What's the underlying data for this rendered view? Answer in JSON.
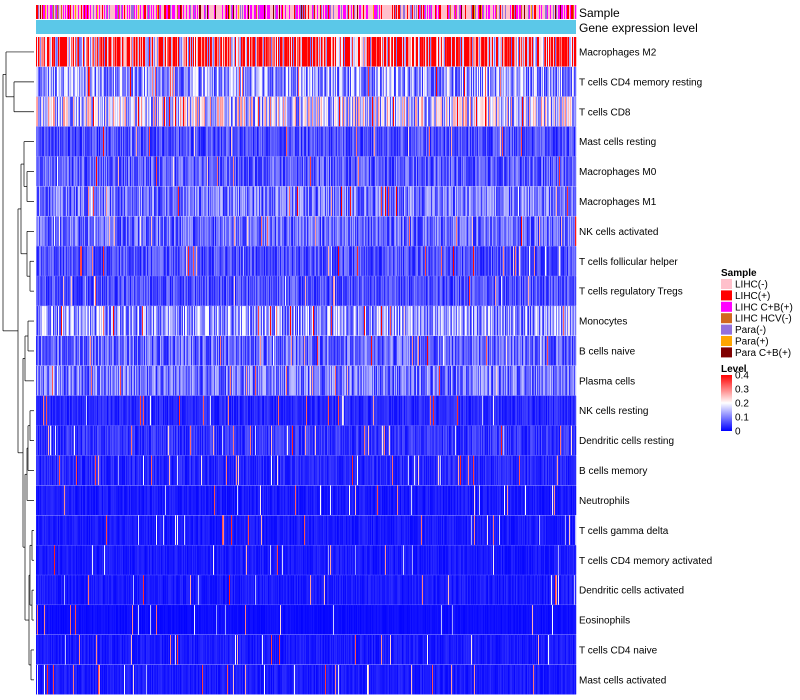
{
  "chart_data": {
    "type": "heatmap",
    "annotations": {
      "sample_label": "Sample",
      "expression_label": "Gene expression level",
      "expression_color": "#5bc8e8"
    },
    "rows": [
      "Macrophages M2",
      "T cells CD4 memory resting",
      "T cells CD8",
      "Mast cells resting",
      "Macrophages M0",
      "Macrophages M1",
      "NK cells activated",
      "T cells follicular helper",
      "T cells regulatory  Tregs",
      "Monocytes",
      "B cells naive",
      "Plasma cells",
      "NK cells resting",
      "Dendritic cells resting",
      "B cells memory",
      "Neutrophils",
      "T cells gamma delta",
      "T cells CD4 memory activated",
      "Dendritic cells activated",
      "Eosinophils",
      "T cells CD4 naive",
      "Mast cells activated"
    ],
    "row_mean_levels": [
      0.32,
      0.12,
      0.17,
      0.06,
      0.07,
      0.09,
      0.08,
      0.06,
      0.06,
      0.12,
      0.08,
      0.09,
      0.03,
      0.04,
      0.03,
      0.02,
      0.02,
      0.02,
      0.02,
      0.01,
      0.02,
      0.02
    ],
    "num_samples": 540,
    "sample_legend": {
      "title": "Sample",
      "items": [
        {
          "label": "LIHC(-)",
          "color": "#ffc0cb"
        },
        {
          "label": "LIHC(+)",
          "color": "#ff0000"
        },
        {
          "label": "LIHC C+B(+)",
          "color": "#ff00ff"
        },
        {
          "label": "LIHC HCV(-)",
          "color": "#d2691e"
        },
        {
          "label": "Para(-)",
          "color": "#9370db"
        },
        {
          "label": "Para(+)",
          "color": "#ffa500"
        },
        {
          "label": "Para C+B(+)",
          "color": "#800000"
        }
      ]
    },
    "level_legend": {
      "title": "Level",
      "ticks": [
        "0.4",
        "0.3",
        "0.2",
        "0.1",
        "0"
      ],
      "tick_values": [
        0.4,
        0.3,
        0.2,
        0.1,
        0
      ],
      "range": [
        0,
        0.4
      ],
      "colors": [
        "#0000ff",
        "#ffffff",
        "#ff0000"
      ]
    }
  }
}
